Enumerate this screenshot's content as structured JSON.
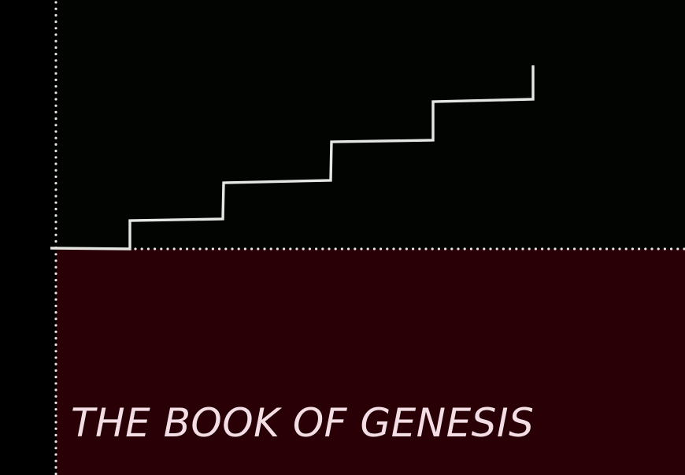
{
  "title": "THE BOOK OF GENESIS",
  "colors": {
    "page_background": "#000000",
    "upper_panel": "#010401",
    "lower_panel": "#280006",
    "line_color": "#e6e6e2",
    "dot_color": "#e6e6e2",
    "title_color": "#f2dee4"
  }
}
